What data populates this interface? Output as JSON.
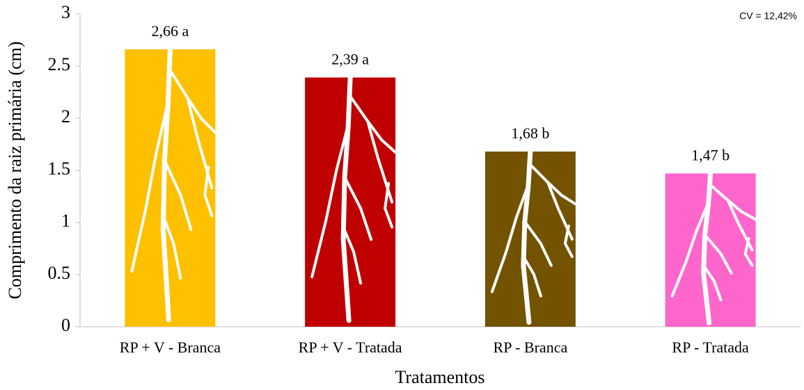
{
  "chart_data": {
    "type": "bar",
    "y_label": "Comprimento da raiz primária (cm)",
    "x_label": "Tratamentos",
    "annotation": "CV = 12,42%",
    "categories": [
      "RP + V - Branca",
      "RP + V - Tratada",
      "RP - Branca",
      "RP - Tratada"
    ],
    "values": [
      2.66,
      2.39,
      1.68,
      1.47
    ],
    "value_labels": [
      "2,66 a",
      "2,39 a",
      "1,68 b",
      "1,47 b"
    ],
    "colors": [
      "#ffc000",
      "#c00000",
      "#735200",
      "#ff66cc"
    ],
    "ylim": [
      0,
      3
    ],
    "yticks": [
      0,
      0.5,
      1,
      1.5,
      2,
      2.5,
      3
    ],
    "grid": false
  }
}
